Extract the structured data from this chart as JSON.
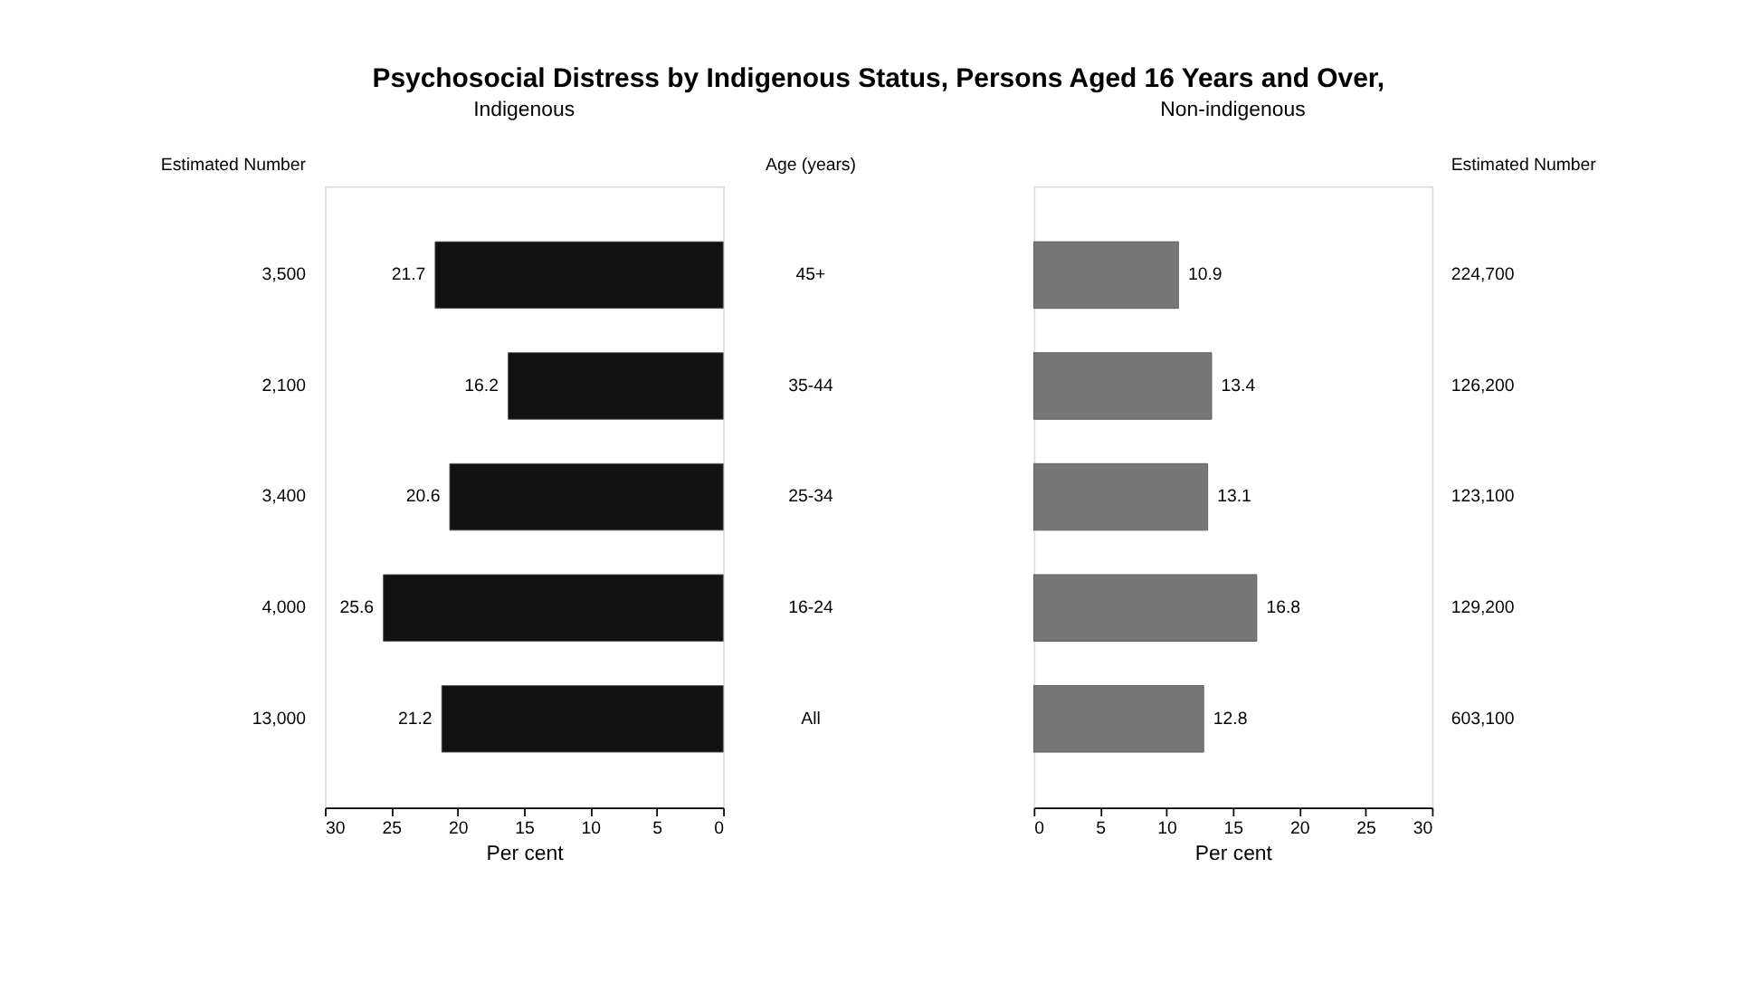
{
  "chart_data": [
    {
      "type": "bar",
      "orientation": "horizontal",
      "title": "Psychosocial Distress by Indigenous Status, Persons Aged 16 Years and Over,",
      "subtitle": "Indigenous",
      "categories": [
        "45+",
        "35-44",
        "25-34",
        "16-24",
        "All"
      ],
      "ylabel": "Age (years)",
      "y2_categories": [
        "3,500",
        "2,100",
        "3,400",
        "4,000",
        "13,000"
      ],
      "y2label": "Estimated Number",
      "values": [
        21.7,
        16.2,
        20.6,
        25.6,
        21.2
      ],
      "color": "#111111",
      "data_labels": true,
      "xlim": [
        30,
        0
      ],
      "xticks": [
        30,
        25,
        20,
        15,
        10,
        5,
        0
      ],
      "xlabel": "Per cent",
      "grid": false
    },
    {
      "type": "bar",
      "orientation": "horizontal",
      "title": "Non-indigenous",
      "y2_categories": [
        "224,700",
        "126,200",
        "123,100",
        "129,200",
        "603,100"
      ],
      "y2label": "Estimated Number",
      "values": [
        10.9,
        13.4,
        13.1,
        16.8,
        12.8
      ],
      "color": "#777777",
      "data_labels": true,
      "xlim": [
        0,
        30
      ],
      "xticks": [
        0,
        5,
        10,
        15,
        20,
        25,
        30
      ],
      "xlabel": "Per cent",
      "grid": false
    }
  ]
}
